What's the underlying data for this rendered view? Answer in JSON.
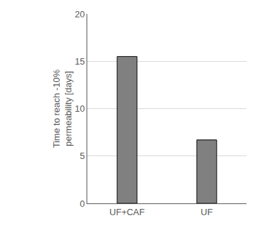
{
  "chart_data": {
    "type": "bar",
    "y_label": "Time to reach -10% permeability [days]",
    "categories": [
      "UF+CAF",
      "UF"
    ],
    "values": [
      15.5,
      6.7
    ],
    "color": "#808080",
    "ylim": [
      0,
      20
    ],
    "yticks": [
      0,
      5,
      10,
      15,
      20
    ],
    "grid": true
  }
}
